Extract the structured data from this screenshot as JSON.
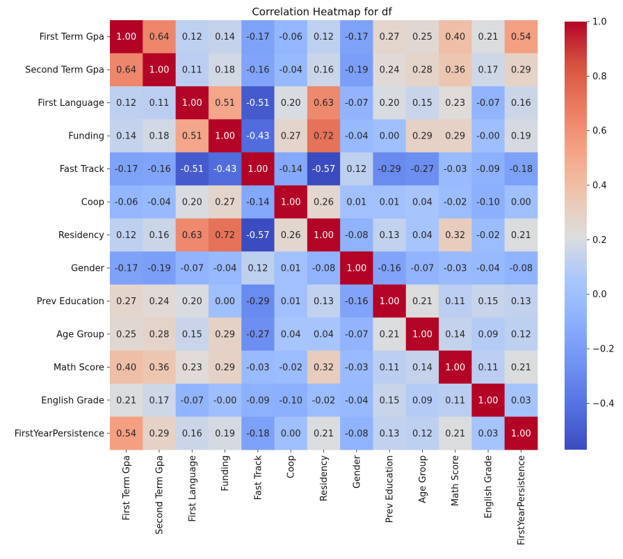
{
  "chart_data": {
    "type": "heatmap",
    "title": "Correlation Heatmap for df",
    "labels": [
      "First Term Gpa",
      "Second Term Gpa",
      "First Language",
      "Funding",
      "Fast Track",
      "Coop",
      "Residency",
      "Gender",
      "Prev Education",
      "Age Group",
      "Math Score",
      "English Grade",
      "FirstYearPersistence"
    ],
    "matrix": [
      [
        1.0,
        0.64,
        0.12,
        0.14,
        -0.17,
        -0.06,
        0.12,
        -0.17,
        0.27,
        0.25,
        0.4,
        0.21,
        0.54
      ],
      [
        0.64,
        1.0,
        0.11,
        0.18,
        -0.16,
        -0.04,
        0.16,
        -0.19,
        0.24,
        0.28,
        0.36,
        0.17,
        0.29
      ],
      [
        0.12,
        0.11,
        1.0,
        0.51,
        -0.51,
        0.2,
        0.63,
        -0.07,
        0.2,
        0.15,
        0.23,
        -0.07,
        0.16
      ],
      [
        0.14,
        0.18,
        0.51,
        1.0,
        -0.43,
        0.27,
        0.72,
        -0.04,
        0.0,
        0.29,
        0.29,
        -0.001,
        0.19
      ],
      [
        -0.17,
        -0.16,
        -0.51,
        -0.43,
        1.0,
        -0.14,
        -0.57,
        0.12,
        -0.29,
        -0.27,
        -0.03,
        -0.09,
        -0.18
      ],
      [
        -0.06,
        -0.04,
        0.2,
        0.27,
        -0.14,
        1.0,
        0.26,
        0.01,
        0.01,
        0.04,
        -0.02,
        -0.1,
        0.0
      ],
      [
        0.12,
        0.16,
        0.63,
        0.72,
        -0.57,
        0.26,
        1.0,
        -0.08,
        0.13,
        0.04,
        0.32,
        -0.02,
        0.21
      ],
      [
        -0.17,
        -0.19,
        -0.07,
        -0.04,
        0.12,
        0.01,
        -0.08,
        1.0,
        -0.16,
        -0.07,
        -0.03,
        -0.04,
        -0.08
      ],
      [
        0.27,
        0.24,
        0.2,
        0.0,
        -0.29,
        0.01,
        0.13,
        -0.16,
        1.0,
        0.21,
        0.11,
        0.15,
        0.13
      ],
      [
        0.25,
        0.28,
        0.15,
        0.29,
        -0.27,
        0.04,
        0.04,
        -0.07,
        0.21,
        1.0,
        0.14,
        0.09,
        0.12
      ],
      [
        0.4,
        0.36,
        0.23,
        0.29,
        -0.03,
        -0.02,
        0.32,
        -0.03,
        0.11,
        0.14,
        1.0,
        0.11,
        0.21
      ],
      [
        0.21,
        0.17,
        -0.07,
        -0.001,
        -0.09,
        -0.1,
        -0.02,
        -0.04,
        0.15,
        0.09,
        0.11,
        1.0,
        0.03
      ],
      [
        0.54,
        0.29,
        0.16,
        0.19,
        -0.18,
        0.0,
        0.21,
        -0.08,
        0.13,
        0.12,
        0.21,
        0.03,
        1.0
      ]
    ],
    "value_format": "0.00",
    "colormap": "coolwarm",
    "vmin": -0.57,
    "vmax": 1.0,
    "colorbar_ticks": [
      1.0,
      0.8,
      0.6,
      0.4,
      0.2,
      0.0,
      -0.2,
      -0.4
    ],
    "colorbar_tick_labels": [
      "1.0",
      "0.8",
      "0.6",
      "0.4",
      "0.2",
      "0.0",
      "−0.2",
      "−0.4"
    ],
    "colors": {
      "low": "#3b4cc0",
      "mid": "#dddddd",
      "high": "#b40426"
    }
  }
}
